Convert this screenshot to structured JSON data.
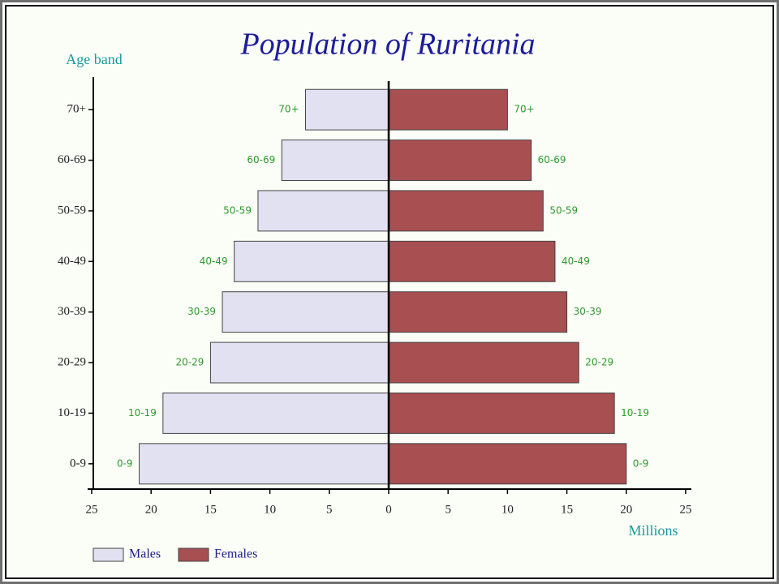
{
  "chart_data": {
    "type": "bar",
    "title": "Population of Ruritania",
    "y_label": "Age band",
    "x_label": "Millions",
    "categories": [
      "0-9",
      "10-19",
      "20-29",
      "30-39",
      "40-49",
      "50-59",
      "60-69",
      "70+"
    ],
    "series": [
      {
        "name": "Males",
        "color": "#e1e1f1",
        "values": [
          -21,
          -19,
          -15,
          -14,
          -13,
          -11,
          -9,
          -7
        ]
      },
      {
        "name": "Females",
        "color": "#a84f52",
        "values": [
          20,
          19,
          16,
          15,
          14,
          13,
          12,
          10
        ]
      }
    ],
    "xlim": [
      -25,
      25
    ],
    "xticks": [
      {
        "value": -25,
        "label": "25"
      },
      {
        "value": -20,
        "label": "20"
      },
      {
        "value": -15,
        "label": "15"
      },
      {
        "value": -10,
        "label": "10"
      },
      {
        "value": -5,
        "label": "5"
      },
      0,
      5,
      10,
      15,
      20,
      25
    ],
    "legend": "bottom-left"
  }
}
